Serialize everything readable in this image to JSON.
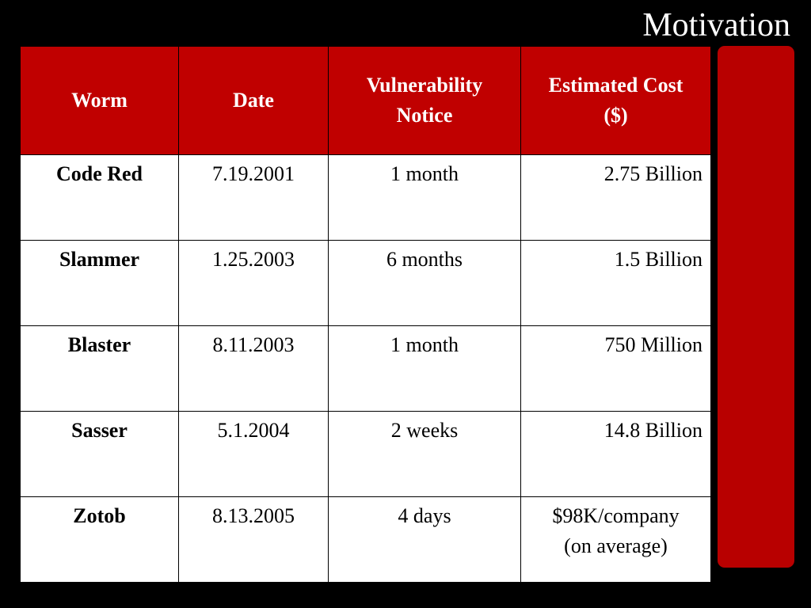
{
  "slide": {
    "title": "Motivation"
  },
  "table": {
    "headers": {
      "worm": "Worm",
      "date": "Date",
      "notice_line1": "Vulnerability",
      "notice_line2": "Notice",
      "cost_line1": "Estimated Cost",
      "cost_line2": "($)"
    },
    "rows": [
      {
        "worm": "Code Red",
        "date": "7.19.2001",
        "notice": "1 month",
        "cost": "2.75 Billion",
        "cost_note": ""
      },
      {
        "worm": "Slammer",
        "date": "1.25.2003",
        "notice": "6 months",
        "cost": "1.5 Billion",
        "cost_note": ""
      },
      {
        "worm": "Blaster",
        "date": "8.11.2003",
        "notice": "1 month",
        "cost": "750 Million",
        "cost_note": ""
      },
      {
        "worm": "Sasser",
        "date": "5.1.2004",
        "notice": "2 weeks",
        "cost": "14.8 Billion",
        "cost_note": ""
      },
      {
        "worm": "Zotob",
        "date": "8.13.2005",
        "notice": "4 days",
        "cost": "$98K/company",
        "cost_note": "(on average)"
      }
    ]
  },
  "colors": {
    "background": "#000000",
    "header_fill": "#c00000",
    "side_bar": "#b80000",
    "cell_fill": "#ffffff"
  }
}
